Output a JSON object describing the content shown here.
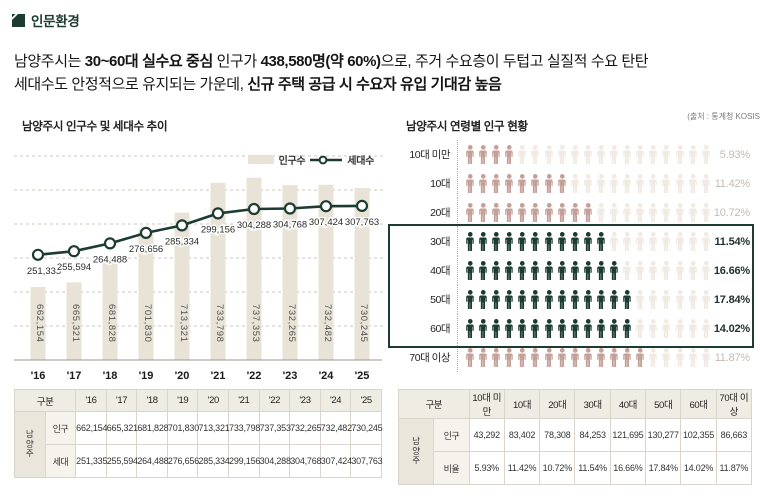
{
  "page": {
    "section_title": "인문환경",
    "source_note": "(출처 : 통계청 KOSIS",
    "headline": {
      "l1_parts": [
        {
          "t": "남양주시는 ",
          "b": false
        },
        {
          "t": "30~60대 실수요 중심",
          "b": true
        },
        {
          "t": " 인구가 ",
          "b": false
        },
        {
          "t": "438,580명(약 60%)",
          "b": true
        },
        {
          "t": "으로, 주거 수요층이 두텁고 실질적 수요 탄탄",
          "b": false
        }
      ],
      "l2_parts": [
        {
          "t": "세대수도 안정적으로 유지되는 가운데, ",
          "b": false
        },
        {
          "t": "신규 주택 공급 시 수요자 유입 기대감 높음",
          "b": true
        }
      ]
    }
  },
  "colors": {
    "accent_green": "#1c3b31",
    "bar_beige": "#e9e3d7",
    "icon_pink": "#c5a098",
    "icon_faint": "#f0eae3",
    "muted_pct": "#c6bab3"
  },
  "chart_data": [
    {
      "type": "bar",
      "title": "남양주시 인구수 및 세대수 추이",
      "categories": [
        "'16",
        "'17",
        "'18",
        "'19",
        "'20",
        "'21",
        "'22",
        "'23",
        "'24",
        "'25"
      ],
      "series": [
        {
          "name": "인구수",
          "type": "bar",
          "values": [
            662154,
            665321,
            681828,
            701830,
            713321,
            733798,
            737353,
            732265,
            732482,
            730245
          ]
        },
        {
          "name": "세대수",
          "type": "line",
          "values": [
            251335,
            255594,
            264488,
            276656,
            285334,
            299156,
            304288,
            304768,
            307424,
            307763
          ]
        }
      ],
      "bar_axis_range": [
        612000,
        755000
      ],
      "line_axis_range": [
        130000,
        370000
      ],
      "grid": "dashed-horizontal",
      "legend_position": "top-right"
    },
    {
      "type": "pictogram",
      "title": "남양주시 연령별 인구 현황",
      "icons_per_row": 19,
      "rows": [
        {
          "label": "10대 미만",
          "pct": "5.93%",
          "filled": 4,
          "group": "pink",
          "highlight": false
        },
        {
          "label": "10대",
          "pct": "11.42%",
          "filled": 8,
          "group": "pink",
          "highlight": false
        },
        {
          "label": "20대",
          "pct": "10.72%",
          "filled": 10,
          "group": "pink",
          "highlight": false
        },
        {
          "label": "30대",
          "pct": "11.54%",
          "filled": 11,
          "group": "green",
          "highlight": true
        },
        {
          "label": "40대",
          "pct": "16.66%",
          "filled": 12,
          "group": "green",
          "highlight": true
        },
        {
          "label": "50대",
          "pct": "17.84%",
          "filled": 13,
          "group": "green",
          "highlight": true
        },
        {
          "label": "60대",
          "pct": "14.02%",
          "filled": 13,
          "group": "green",
          "highlight": true
        },
        {
          "label": "70대 이상",
          "pct": "11.87%",
          "filled": 14,
          "group": "pink",
          "highlight": false
        }
      ]
    }
  ],
  "tables": {
    "trend": {
      "corner": "구분",
      "region": "남양주",
      "col_headers": [
        "'16",
        "'17",
        "'18",
        "'19",
        "'20",
        "'21",
        "'22",
        "'23",
        "'24",
        "'25"
      ],
      "rows": [
        {
          "label": "인구",
          "values": [
            "662,154",
            "665,321",
            "681,828",
            "701,830",
            "713,321",
            "733,798",
            "737,353",
            "732,265",
            "732,482",
            "730,245"
          ]
        },
        {
          "label": "세대",
          "values": [
            "251,335",
            "255,594",
            "264,488",
            "276,656",
            "285,334",
            "299,156",
            "304,288",
            "304,768",
            "307,424",
            "307,763"
          ]
        }
      ]
    },
    "age": {
      "corner": "구분",
      "region": "남양주",
      "col_headers": [
        "10대 미만",
        "10대",
        "20대",
        "30대",
        "40대",
        "50대",
        "60대",
        "70대 이상"
      ],
      "rows": [
        {
          "label": "인구",
          "values": [
            "43,292",
            "83,402",
            "78,308",
            "84,253",
            "121,695",
            "130,277",
            "102,355",
            "86,663"
          ]
        },
        {
          "label": "비율",
          "values": [
            "5.93%",
            "11.42%",
            "10.72%",
            "11.54%",
            "16.66%",
            "17.84%",
            "14.02%",
            "11.87%"
          ]
        }
      ]
    }
  }
}
